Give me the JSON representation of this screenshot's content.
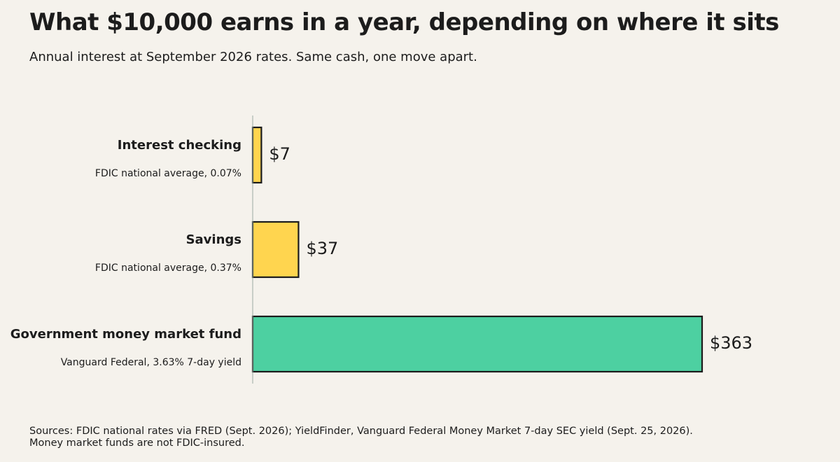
{
  "title": "What $10,000 earns in a year, depending on where it sits",
  "subtitle": "Annual interest at September 2026 rates. Same cash, one move apart.",
  "footer": {
    "line1": "Sources: FDIC national rates via FRED (Sept. 2026); YieldFinder, Vanguard Federal Money Market 7-day SEC yield (Sept. 25, 2026).",
    "line2": "Money market funds are not FDIC-insured."
  },
  "colors": {
    "background": "#f5f2ec",
    "bar_low": "#ffd54f",
    "bar_high": "#4dd0a1",
    "bar_stroke": "#1c1c1c",
    "axis": "#9aaba2"
  },
  "chart_data": {
    "type": "bar",
    "orientation": "horizontal",
    "categories": [
      "Interest checking",
      "Savings",
      "Government money market fund"
    ],
    "descriptions": [
      "FDIC national average, 0.07%",
      "FDIC national average, 0.37%",
      "Vanguard Federal, 3.63% 7-day yield"
    ],
    "values": [
      7,
      37,
      363
    ],
    "value_labels": [
      "$7",
      "$37",
      "$363"
    ],
    "bar_colors": [
      "#ffd54f",
      "#ffd54f",
      "#4dd0a1"
    ],
    "xlim": [
      0,
      363
    ],
    "grid": false,
    "legend": "none"
  }
}
